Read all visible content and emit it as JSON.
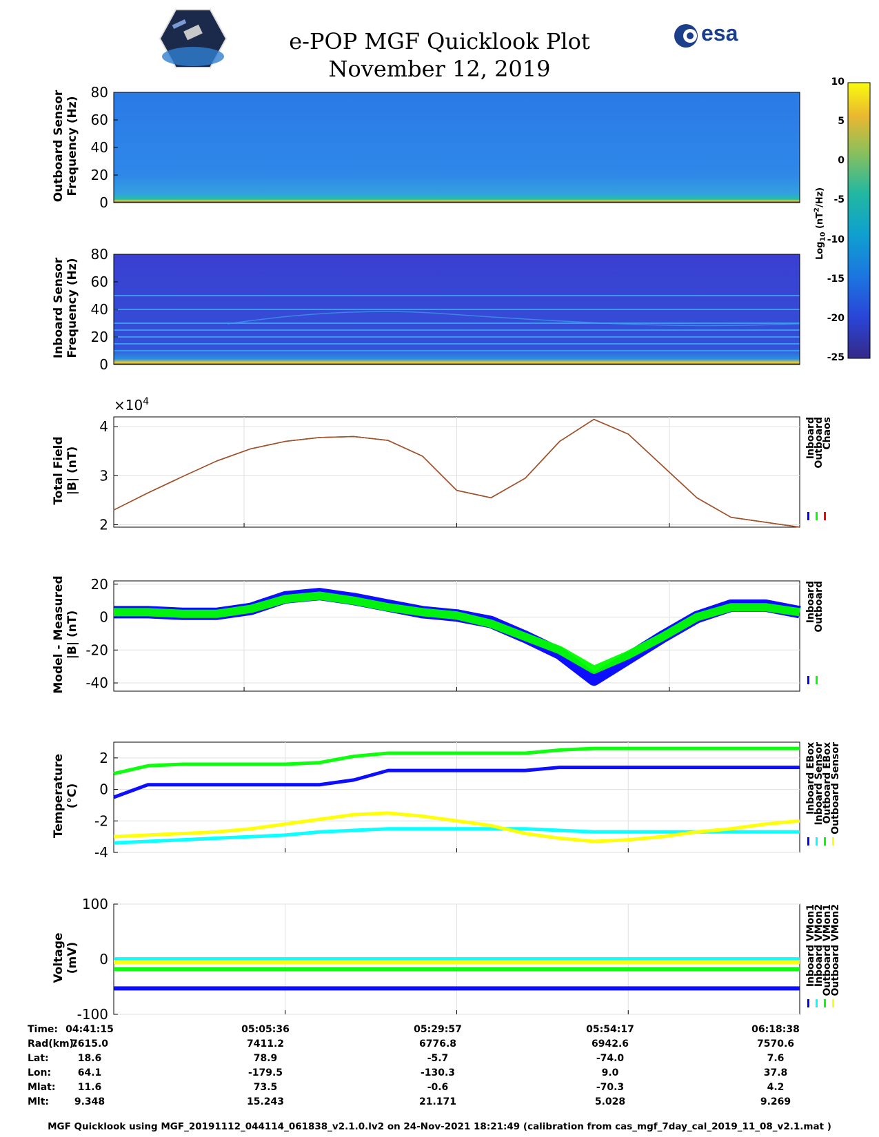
{
  "header": {
    "title": "e-POP MGF Quicklook Plot",
    "date": "November 12, 2019",
    "left_logo": "cassiope-logo",
    "right_logo_text": "esa"
  },
  "colorbar": {
    "label": "Log10 (nT2/Hz)",
    "ticks": [
      "10",
      "5",
      "0",
      "-5",
      "-10",
      "-15",
      "-20",
      "-25"
    ]
  },
  "colors": {
    "blue": "#0000ff",
    "green": "#00ff00",
    "red": "#ff0000",
    "yellow": "#ffff00",
    "cyan": "#00ffff",
    "brown": "#a0522d"
  },
  "chart_data": [
    {
      "type": "heatmap",
      "ylabel": "Outboard Sensor\nFrequency (Hz)",
      "yticks": [
        "80",
        "60",
        "40",
        "20",
        "0"
      ],
      "ylim": [
        0,
        80
      ]
    },
    {
      "type": "heatmap",
      "ylabel": "Inboard Sensor\nFrequency (Hz)",
      "yticks": [
        "80",
        "60",
        "40",
        "20",
        "0"
      ],
      "ylim": [
        0,
        80
      ]
    },
    {
      "type": "line",
      "ylabel": "Total Field\n|B| (nT)",
      "exponent": "×10",
      "exponent_power": "4",
      "yticks": [
        "4",
        "3",
        "2"
      ],
      "ylim": [
        1.95,
        4.2
      ],
      "x": [
        0,
        0.05,
        0.1,
        0.15,
        0.2,
        0.25,
        0.3,
        0.35,
        0.4,
        0.45,
        0.5,
        0.55,
        0.6,
        0.65,
        0.7,
        0.75,
        0.8,
        0.85,
        0.9,
        0.95,
        1.0
      ],
      "series": [
        {
          "name": "Inboard",
          "values": [
            2.3,
            2.65,
            2.98,
            3.3,
            3.55,
            3.7,
            3.78,
            3.8,
            3.72,
            3.4,
            2.7,
            2.55,
            2.95,
            3.7,
            4.15,
            3.85,
            3.2,
            2.55,
            2.15,
            2.05,
            1.95
          ]
        },
        {
          "name": "Outboard",
          "values": [
            2.3,
            2.65,
            2.98,
            3.3,
            3.55,
            3.7,
            3.78,
            3.8,
            3.72,
            3.4,
            2.7,
            2.55,
            2.95,
            3.7,
            4.15,
            3.85,
            3.2,
            2.55,
            2.15,
            2.05,
            1.95
          ]
        },
        {
          "name": "Chaos",
          "values": [
            2.3,
            2.65,
            2.98,
            3.3,
            3.55,
            3.7,
            3.78,
            3.8,
            3.72,
            3.4,
            2.7,
            2.55,
            2.95,
            3.7,
            4.15,
            3.85,
            3.2,
            2.55,
            2.15,
            2.05,
            1.95
          ]
        }
      ],
      "legend": [
        "Inboard",
        "Outboard",
        "Chaos"
      ]
    },
    {
      "type": "line",
      "ylabel": "Model - Measured\n|B| (nT)",
      "yticks": [
        "20",
        "0",
        "-20",
        "-40"
      ],
      "ylim": [
        -45,
        22
      ],
      "x": [
        0,
        0.05,
        0.1,
        0.15,
        0.2,
        0.25,
        0.3,
        0.35,
        0.4,
        0.45,
        0.5,
        0.55,
        0.6,
        0.65,
        0.7,
        0.75,
        0.8,
        0.85,
        0.9,
        0.95,
        1.0
      ],
      "series": [
        {
          "name": "Inboard",
          "values": [
            3,
            3,
            2,
            2,
            5,
            12,
            14,
            11,
            7,
            3,
            1,
            -3,
            -12,
            -22,
            -38,
            -25,
            -12,
            0,
            7,
            7,
            3
          ]
        },
        {
          "name": "Outboard",
          "values": [
            3,
            3,
            2,
            2,
            5,
            11,
            13,
            10,
            6,
            3,
            1,
            -4,
            -12,
            -20,
            -32,
            -23,
            -12,
            0,
            6,
            6,
            3
          ]
        }
      ],
      "legend": [
        "Inboard",
        "Outboard"
      ]
    },
    {
      "type": "line",
      "ylabel": "Temperature\n(°C)",
      "yticks": [
        "2",
        "0",
        "-2",
        "-4"
      ],
      "ylim": [
        -4,
        3
      ],
      "x": [
        0,
        0.05,
        0.1,
        0.15,
        0.2,
        0.25,
        0.3,
        0.35,
        0.4,
        0.45,
        0.5,
        0.55,
        0.6,
        0.65,
        0.7,
        0.75,
        0.8,
        0.85,
        0.9,
        0.95,
        1.0
      ],
      "series": [
        {
          "name": "Inboard EBox",
          "values": [
            -0.5,
            0.3,
            0.3,
            0.3,
            0.3,
            0.3,
            0.3,
            0.6,
            1.2,
            1.2,
            1.2,
            1.2,
            1.2,
            1.4,
            1.4,
            1.4,
            1.4,
            1.4,
            1.4,
            1.4,
            1.4
          ]
        },
        {
          "name": "Inboard Sensor",
          "values": [
            1.0,
            1.5,
            1.6,
            1.6,
            1.6,
            1.6,
            1.7,
            2.1,
            2.3,
            2.3,
            2.3,
            2.3,
            2.3,
            2.5,
            2.6,
            2.6,
            2.6,
            2.6,
            2.6,
            2.6,
            2.6
          ]
        },
        {
          "name": "Outboard EBox",
          "values": [
            -3.4,
            -3.3,
            -3.2,
            -3.1,
            -3.0,
            -2.9,
            -2.7,
            -2.6,
            -2.5,
            -2.5,
            -2.5,
            -2.5,
            -2.5,
            -2.6,
            -2.7,
            -2.7,
            -2.7,
            -2.7,
            -2.7,
            -2.7,
            -2.7
          ]
        },
        {
          "name": "Outboard Sensor",
          "values": [
            -3.0,
            -2.9,
            -2.8,
            -2.7,
            -2.5,
            -2.2,
            -1.9,
            -1.6,
            -1.5,
            -1.7,
            -2.0,
            -2.3,
            -2.8,
            -3.1,
            -3.3,
            -3.2,
            -3.0,
            -2.7,
            -2.5,
            -2.2,
            -2.0
          ]
        }
      ],
      "legend": [
        "Inboard EBox",
        "Inboard Sensor",
        "Outboard EBox",
        "Outboard Sensor"
      ]
    },
    {
      "type": "line",
      "ylabel": "Voltage\n(mV)",
      "yticks": [
        "100",
        "0",
        "-100"
      ],
      "ylim": [
        -100,
        100
      ],
      "x": [
        0,
        0.25,
        0.5,
        0.75,
        1.0
      ],
      "series": [
        {
          "name": "Inboard VMon1",
          "values": [
            -53,
            -53,
            -53,
            -53,
            -53
          ]
        },
        {
          "name": "Inboard VMon2",
          "values": [
            -18,
            -18,
            -18,
            -18,
            -18
          ]
        },
        {
          "name": "Outboard VMon1",
          "values": [
            0,
            0,
            0,
            0,
            0
          ]
        },
        {
          "name": "Outboard VMon2",
          "values": [
            -5,
            -5,
            -5,
            -5,
            -5
          ]
        }
      ],
      "legend": [
        "Inboard VMon1",
        "Inboard VMon2",
        "Outboard VMon1",
        "Outboard VMon2"
      ]
    }
  ],
  "info_table": {
    "labels": [
      "Time:",
      "Rad(km):",
      "Lat:",
      "Lon:",
      "Mlat:",
      "Mlt:"
    ],
    "columns": [
      [
        "04:41:15",
        "7615.0",
        "18.6",
        "64.1",
        "11.6",
        "9.348"
      ],
      [
        "05:05:36",
        "7411.2",
        "78.9",
        "-179.5",
        "73.5",
        "15.243"
      ],
      [
        "05:29:57",
        "6776.8",
        "-5.7",
        "-130.3",
        "-0.6",
        "21.171"
      ],
      [
        "05:54:17",
        "6942.6",
        "-74.0",
        "9.0",
        "-70.3",
        "5.028"
      ],
      [
        "06:18:38",
        "7570.6",
        "7.6",
        "37.8",
        "4.2",
        "9.269"
      ]
    ]
  },
  "footer": "MGF Quicklook using MGF_20191112_044114_061838_v2.1.0.lv2 on 24-Nov-2021 18:21:49 (calibration from cas_mgf_7day_cal_2019_11_08_v2.1.mat )"
}
